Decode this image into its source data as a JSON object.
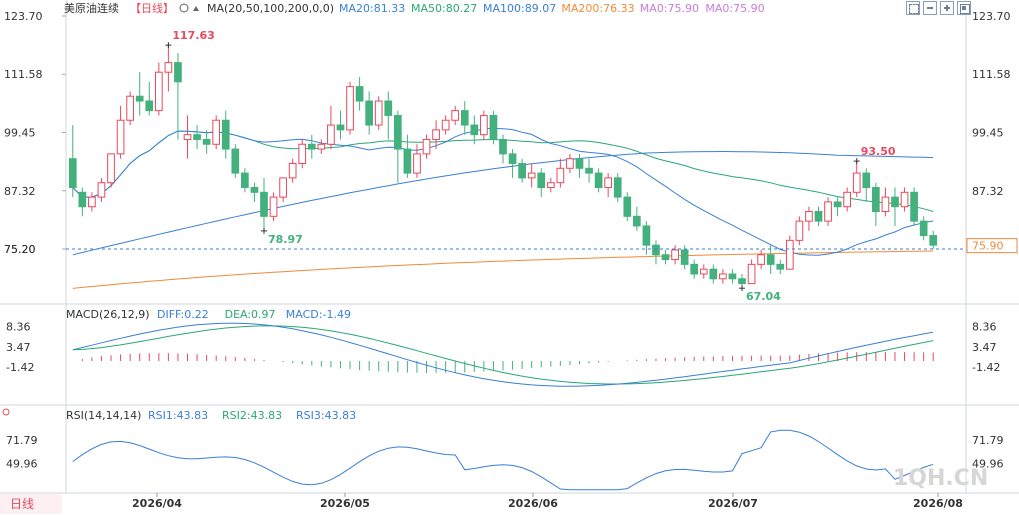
{
  "header": {
    "symbol": "美原油连续",
    "period": "【日线】",
    "ma_label": "MA(20,50,100,200,0,0)",
    "ma_values": [
      {
        "label": "MA20:81.33",
        "color": "#3a7fd5"
      },
      {
        "label": "MA50:80.27",
        "color": "#2aa874"
      },
      {
        "label": "MA100:89.07",
        "color": "#3a7fd5"
      },
      {
        "label": "MA200:76.33",
        "color": "#f08a3b"
      },
      {
        "label": "MA0:75.90",
        "color": "#c77dd4"
      },
      {
        "label": "MA0:75.90",
        "color": "#c77dd4"
      }
    ],
    "macd_label": "MACD(26,12,9)",
    "macd_values": [
      {
        "label": "DIFF:0.22",
        "color": "#3a7fd5"
      },
      {
        "label": "DEA:0.97",
        "color": "#2aa874"
      },
      {
        "label": "MACD:-1.49",
        "color": "#3a7fd5"
      }
    ],
    "rsi_label": "RSI(14,14,14)",
    "rsi_values": [
      {
        "label": "RSI1:43.83",
        "color": "#3a7fd5"
      },
      {
        "label": "RSI2:43.83",
        "color": "#2aa874"
      },
      {
        "label": "RSI3:43.83",
        "color": "#3a7fd5"
      }
    ]
  },
  "footer": {
    "period_button": "日线",
    "watermark": "1QH.CN"
  },
  "colors": {
    "up": "#e8495d",
    "down": "#43b17d",
    "ma20": "#3a7fd5",
    "ma50": "#2aa874",
    "ma100": "#3a7fd5",
    "ma200": "#f08a3b",
    "axis_text": "#333333",
    "last_price": "#f08a3b"
  },
  "chart_data": [
    {
      "type": "candlestick",
      "title": "美原油连续 日线",
      "price_ticks": [
        "123.70",
        "111.58",
        "99.45",
        "87.32",
        "75.20"
      ],
      "ylim": [
        65.0,
        123.7
      ],
      "x_ticks": [
        "2026/04",
        "2026/05",
        "2026/06",
        "2026/07",
        "2026/08"
      ],
      "annotations": [
        {
          "label": "117.63",
          "kind": "high",
          "color": "#e8495d"
        },
        {
          "label": "78.97",
          "kind": "low",
          "color": "#43b17d"
        },
        {
          "label": "67.04",
          "kind": "low",
          "color": "#43b17d"
        },
        {
          "label": "93.50",
          "kind": "high",
          "color": "#e8495d"
        }
      ],
      "last_price": "75.90",
      "right_axis_price_label": "75.20",
      "ohlc": [
        [
          94,
          101,
          88,
          86
        ],
        [
          87,
          88,
          84,
          82
        ],
        [
          84,
          87,
          86,
          83
        ],
        [
          86,
          90,
          89,
          85
        ],
        [
          89,
          95,
          95,
          88
        ],
        [
          95,
          105,
          102,
          94
        ],
        [
          102,
          108,
          107,
          101
        ],
        [
          107,
          112,
          106,
          103
        ],
        [
          106,
          110,
          104,
          103
        ],
        [
          104,
          114,
          112,
          103
        ],
        [
          112,
          118,
          114,
          108
        ],
        [
          114,
          116,
          110,
          98
        ],
        [
          98,
          103,
          99,
          94
        ],
        [
          99,
          101,
          98,
          96
        ],
        [
          98,
          100,
          97,
          95
        ],
        [
          97,
          103,
          102,
          96
        ],
        [
          102,
          104,
          96,
          94
        ],
        [
          96,
          97,
          91,
          90
        ],
        [
          91,
          92,
          88,
          87
        ],
        [
          88,
          89,
          87,
          85
        ],
        [
          87,
          90,
          82,
          78.97
        ],
        [
          82,
          87,
          86,
          81
        ],
        [
          86,
          90,
          90,
          85
        ],
        [
          90,
          94,
          93,
          89
        ],
        [
          93,
          98,
          97,
          92
        ],
        [
          97,
          99,
          96,
          94
        ],
        [
          96,
          98,
          97,
          95
        ],
        [
          97,
          105,
          101,
          96
        ],
        [
          101,
          104,
          100,
          98
        ],
        [
          100,
          110,
          109,
          99
        ],
        [
          109,
          111,
          106,
          104
        ],
        [
          106,
          108,
          101,
          99
        ],
        [
          101,
          107,
          106,
          100
        ],
        [
          106,
          108,
          103,
          98
        ],
        [
          103,
          104,
          96,
          89
        ],
        [
          96,
          99,
          91,
          90
        ],
        [
          91,
          97,
          95,
          90
        ],
        [
          95,
          99,
          98,
          94
        ],
        [
          98,
          102,
          100,
          96
        ],
        [
          100,
          103,
          102,
          99
        ],
        [
          102,
          105,
          104,
          101
        ],
        [
          104,
          106,
          101,
          99
        ],
        [
          101,
          103,
          99,
          97
        ],
        [
          99,
          104,
          103,
          98
        ],
        [
          103,
          104,
          98,
          97
        ],
        [
          98,
          99,
          95,
          93
        ],
        [
          95,
          96,
          93,
          90
        ],
        [
          93,
          94,
          90,
          89
        ],
        [
          90,
          93,
          91,
          88
        ],
        [
          91,
          92,
          88,
          86
        ],
        [
          88,
          90,
          89,
          87
        ],
        [
          89,
          94,
          92,
          88
        ],
        [
          92,
          95,
          94,
          91
        ],
        [
          94,
          95,
          92,
          90
        ],
        [
          92,
          94,
          91,
          89
        ],
        [
          91,
          92,
          88,
          87
        ],
        [
          88,
          91,
          90,
          86
        ],
        [
          90,
          91,
          86,
          85
        ],
        [
          86,
          87,
          82,
          81
        ],
        [
          82,
          84,
          80,
          79
        ],
        [
          80,
          81,
          76,
          74
        ],
        [
          76,
          77,
          74,
          72
        ],
        [
          74,
          75,
          73,
          72
        ],
        [
          73,
          76,
          75,
          72
        ],
        [
          75,
          76,
          72,
          71
        ],
        [
          72,
          73,
          70,
          69
        ],
        [
          70,
          72,
          71,
          69
        ],
        [
          71,
          72,
          69,
          68
        ],
        [
          69,
          71,
          70,
          68
        ],
        [
          70,
          71,
          69,
          68
        ],
        [
          69,
          70,
          68,
          67.04
        ],
        [
          68,
          73,
          72,
          68
        ],
        [
          72,
          75,
          74,
          71
        ],
        [
          74,
          76,
          72,
          70
        ],
        [
          72,
          73,
          71,
          70
        ],
        [
          71,
          78,
          77,
          71
        ],
        [
          77,
          82,
          81,
          76
        ],
        [
          81,
          84,
          83,
          79
        ],
        [
          83,
          84,
          81,
          80
        ],
        [
          81,
          86,
          85,
          80
        ],
        [
          85,
          86,
          84,
          82
        ],
        [
          84,
          88,
          87,
          83
        ],
        [
          87,
          93.5,
          91,
          86
        ],
        [
          91,
          92,
          88,
          85
        ],
        [
          88,
          89,
          83,
          80
        ],
        [
          83,
          88,
          86,
          82
        ],
        [
          86,
          88,
          84,
          80
        ],
        [
          84,
          88,
          87,
          83
        ],
        [
          87,
          88,
          81,
          80
        ],
        [
          81,
          82,
          78,
          77
        ],
        [
          78,
          79,
          76,
          75.2
        ]
      ],
      "ma20": [],
      "ma50": [],
      "ma100": [],
      "ma200": []
    },
    {
      "type": "macd",
      "ticks": [
        "8.36",
        "3.47",
        "-1.42"
      ],
      "ylim": [
        -9.5,
        9.5
      ],
      "diff": [],
      "dea": [],
      "hist": []
    },
    {
      "type": "rsi",
      "ticks": [
        "71.79",
        "49.96"
      ],
      "ylim": [
        24,
        90
      ],
      "rsi": []
    }
  ]
}
